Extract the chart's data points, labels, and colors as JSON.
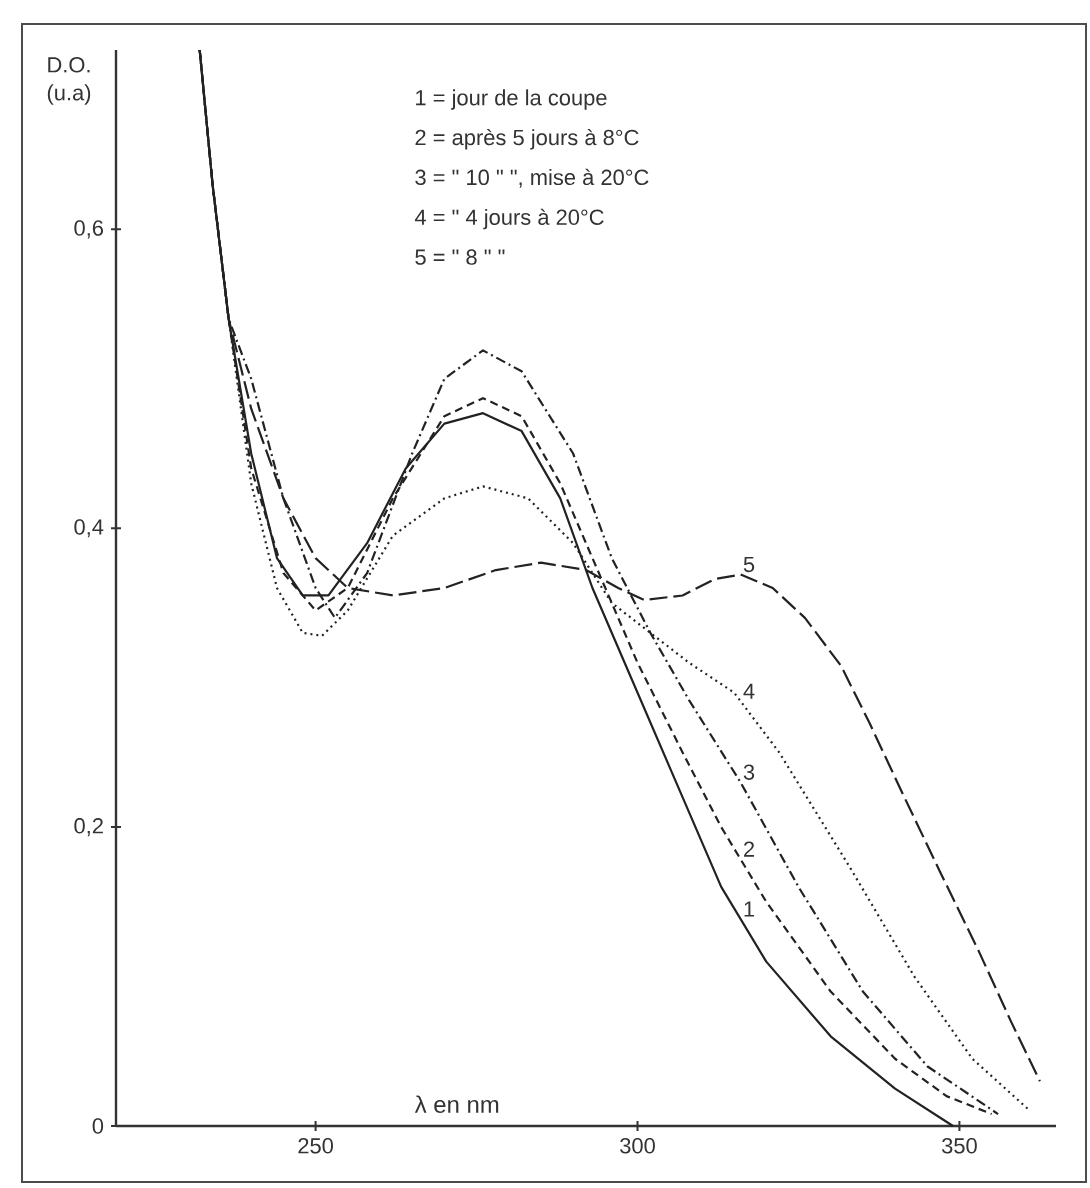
{
  "chart_data": {
    "type": "line",
    "xlabel": "λ en nm",
    "ylabel": "D.O. (u.a)",
    "annotations": [
      "1 = jour de la coupe",
      "2 = après 5 jours à 8°C",
      "3 = \"   10   \"   \", mise à 20°C",
      "4 = \"   4 jours à 20°C",
      "5 = \"   8   \"   \""
    ],
    "xlim": [
      219,
      365
    ],
    "ylim": [
      0,
      0.72
    ],
    "xticks": [
      250,
      300,
      350
    ],
    "yticks": [
      0,
      {
        "value": 0.2,
        "label": "0,2"
      },
      {
        "value": 0.4,
        "label": "0,4"
      },
      {
        "value": 0.6,
        "label": "0,6"
      }
    ],
    "grid": false,
    "legend": false,
    "series": [
      {
        "name": "1",
        "color": "#222222",
        "line_style": "solid",
        "x": [
          232,
          234,
          236.5,
          240,
          244,
          248,
          252,
          258,
          264,
          270,
          276,
          282,
          288,
          293,
          298,
          305,
          313,
          320,
          330,
          340,
          349
        ],
        "values": [
          0.72,
          0.63,
          0.54,
          0.45,
          0.38,
          0.355,
          0.355,
          0.39,
          0.44,
          0.47,
          0.477,
          0.465,
          0.42,
          0.36,
          0.31,
          0.24,
          0.16,
          0.11,
          0.06,
          0.025,
          0
        ]
      },
      {
        "name": "2",
        "color": "#222222",
        "line_style": "dashed",
        "x": [
          232,
          234,
          236.5,
          240,
          245,
          250,
          255,
          262,
          270,
          276,
          282,
          288,
          294,
          300,
          307,
          313,
          320,
          330,
          340,
          348,
          355
        ],
        "values": [
          0.72,
          0.63,
          0.54,
          0.44,
          0.37,
          0.345,
          0.36,
          0.42,
          0.475,
          0.487,
          0.475,
          0.43,
          0.37,
          0.31,
          0.25,
          0.2,
          0.15,
          0.09,
          0.045,
          0.02,
          0.008
        ]
      },
      {
        "name": "3",
        "color": "#222222",
        "line_style": "dashdot",
        "x": [
          232,
          234,
          236.5,
          240,
          245,
          250,
          253,
          258,
          265,
          270,
          276,
          282,
          290,
          296,
          302,
          308,
          316,
          325,
          335,
          345,
          356
        ],
        "values": [
          0.72,
          0.63,
          0.54,
          0.5,
          0.42,
          0.36,
          0.34,
          0.37,
          0.45,
          0.5,
          0.519,
          0.505,
          0.45,
          0.38,
          0.33,
          0.285,
          0.23,
          0.16,
          0.09,
          0.04,
          0.008
        ]
      },
      {
        "name": "4",
        "color": "#222222",
        "line_style": "dotted",
        "x": [
          232,
          234,
          236.5,
          240,
          244,
          248,
          251,
          255,
          262,
          270,
          276,
          283,
          290,
          296,
          302,
          308,
          315,
          322,
          333,
          343,
          352,
          361
        ],
        "values": [
          0.72,
          0.63,
          0.54,
          0.43,
          0.36,
          0.33,
          0.328,
          0.345,
          0.395,
          0.42,
          0.428,
          0.42,
          0.39,
          0.35,
          0.33,
          0.31,
          0.29,
          0.25,
          0.173,
          0.1,
          0.045,
          0.01
        ]
      },
      {
        "name": "5",
        "color": "#222222",
        "line_style": "longdash",
        "x": [
          232,
          234,
          236.5,
          240,
          245,
          250,
          255,
          262,
          270,
          278,
          285,
          292,
          297,
          301,
          307,
          312,
          316,
          321,
          326,
          331.6,
          336,
          341,
          347,
          353,
          358,
          362.5
        ],
        "values": [
          0.72,
          0.63,
          0.54,
          0.48,
          0.42,
          0.38,
          0.36,
          0.355,
          0.36,
          0.372,
          0.377,
          0.372,
          0.36,
          0.352,
          0.355,
          0.366,
          0.369,
          0.36,
          0.34,
          0.308,
          0.27,
          0.224,
          0.17,
          0.117,
          0.07,
          0.03
        ]
      }
    ]
  }
}
